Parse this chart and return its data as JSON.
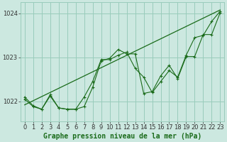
{
  "title": "Graphe pression niveau de la mer (hPa)",
  "bg_color": "#cce8e0",
  "grid_color": "#99ccbb",
  "line_color": "#1a6b1a",
  "ylim": [
    1021.55,
    1024.25
  ],
  "xlim": [
    -0.5,
    23.5
  ],
  "yticks": [
    1022,
    1023,
    1024
  ],
  "xticks": [
    0,
    1,
    2,
    3,
    4,
    5,
    6,
    7,
    8,
    9,
    10,
    11,
    12,
    13,
    14,
    15,
    16,
    17,
    18,
    19,
    20,
    21,
    22,
    23
  ],
  "tick_fontsize": 6.0,
  "xlabel_fontsize": 7.0,
  "series1_x": [
    0,
    1,
    2,
    3,
    4,
    5,
    6,
    7,
    8,
    9,
    10,
    11,
    12,
    13,
    14,
    15,
    16,
    17,
    18,
    19,
    20,
    21,
    22,
    23
  ],
  "series1_y": [
    1022.1,
    1021.9,
    1021.82,
    1022.15,
    1021.85,
    1021.82,
    1021.82,
    1022.1,
    1022.45,
    1022.95,
    1022.95,
    1023.05,
    1023.12,
    1022.75,
    1022.55,
    1022.2,
    1022.45,
    1022.7,
    1022.55,
    1023.05,
    1023.45,
    1023.5,
    1023.82,
    1024.05
  ],
  "series2_x": [
    0,
    1,
    2,
    3,
    4,
    5,
    6,
    7,
    8,
    9,
    10,
    11,
    12,
    13,
    14,
    15,
    16,
    17,
    18,
    19,
    20,
    21,
    22,
    23
  ],
  "series2_y": [
    1022.05,
    1021.88,
    1021.82,
    1022.12,
    1021.85,
    1021.82,
    1021.82,
    1021.88,
    1022.32,
    1022.92,
    1022.98,
    1023.18,
    1023.08,
    1023.08,
    1022.18,
    1022.22,
    1022.58,
    1022.82,
    1022.52,
    1023.02,
    1023.02,
    1023.52,
    1023.52,
    1024.02
  ],
  "trend_x": [
    0,
    23
  ],
  "trend_y": [
    1021.92,
    1024.08
  ]
}
